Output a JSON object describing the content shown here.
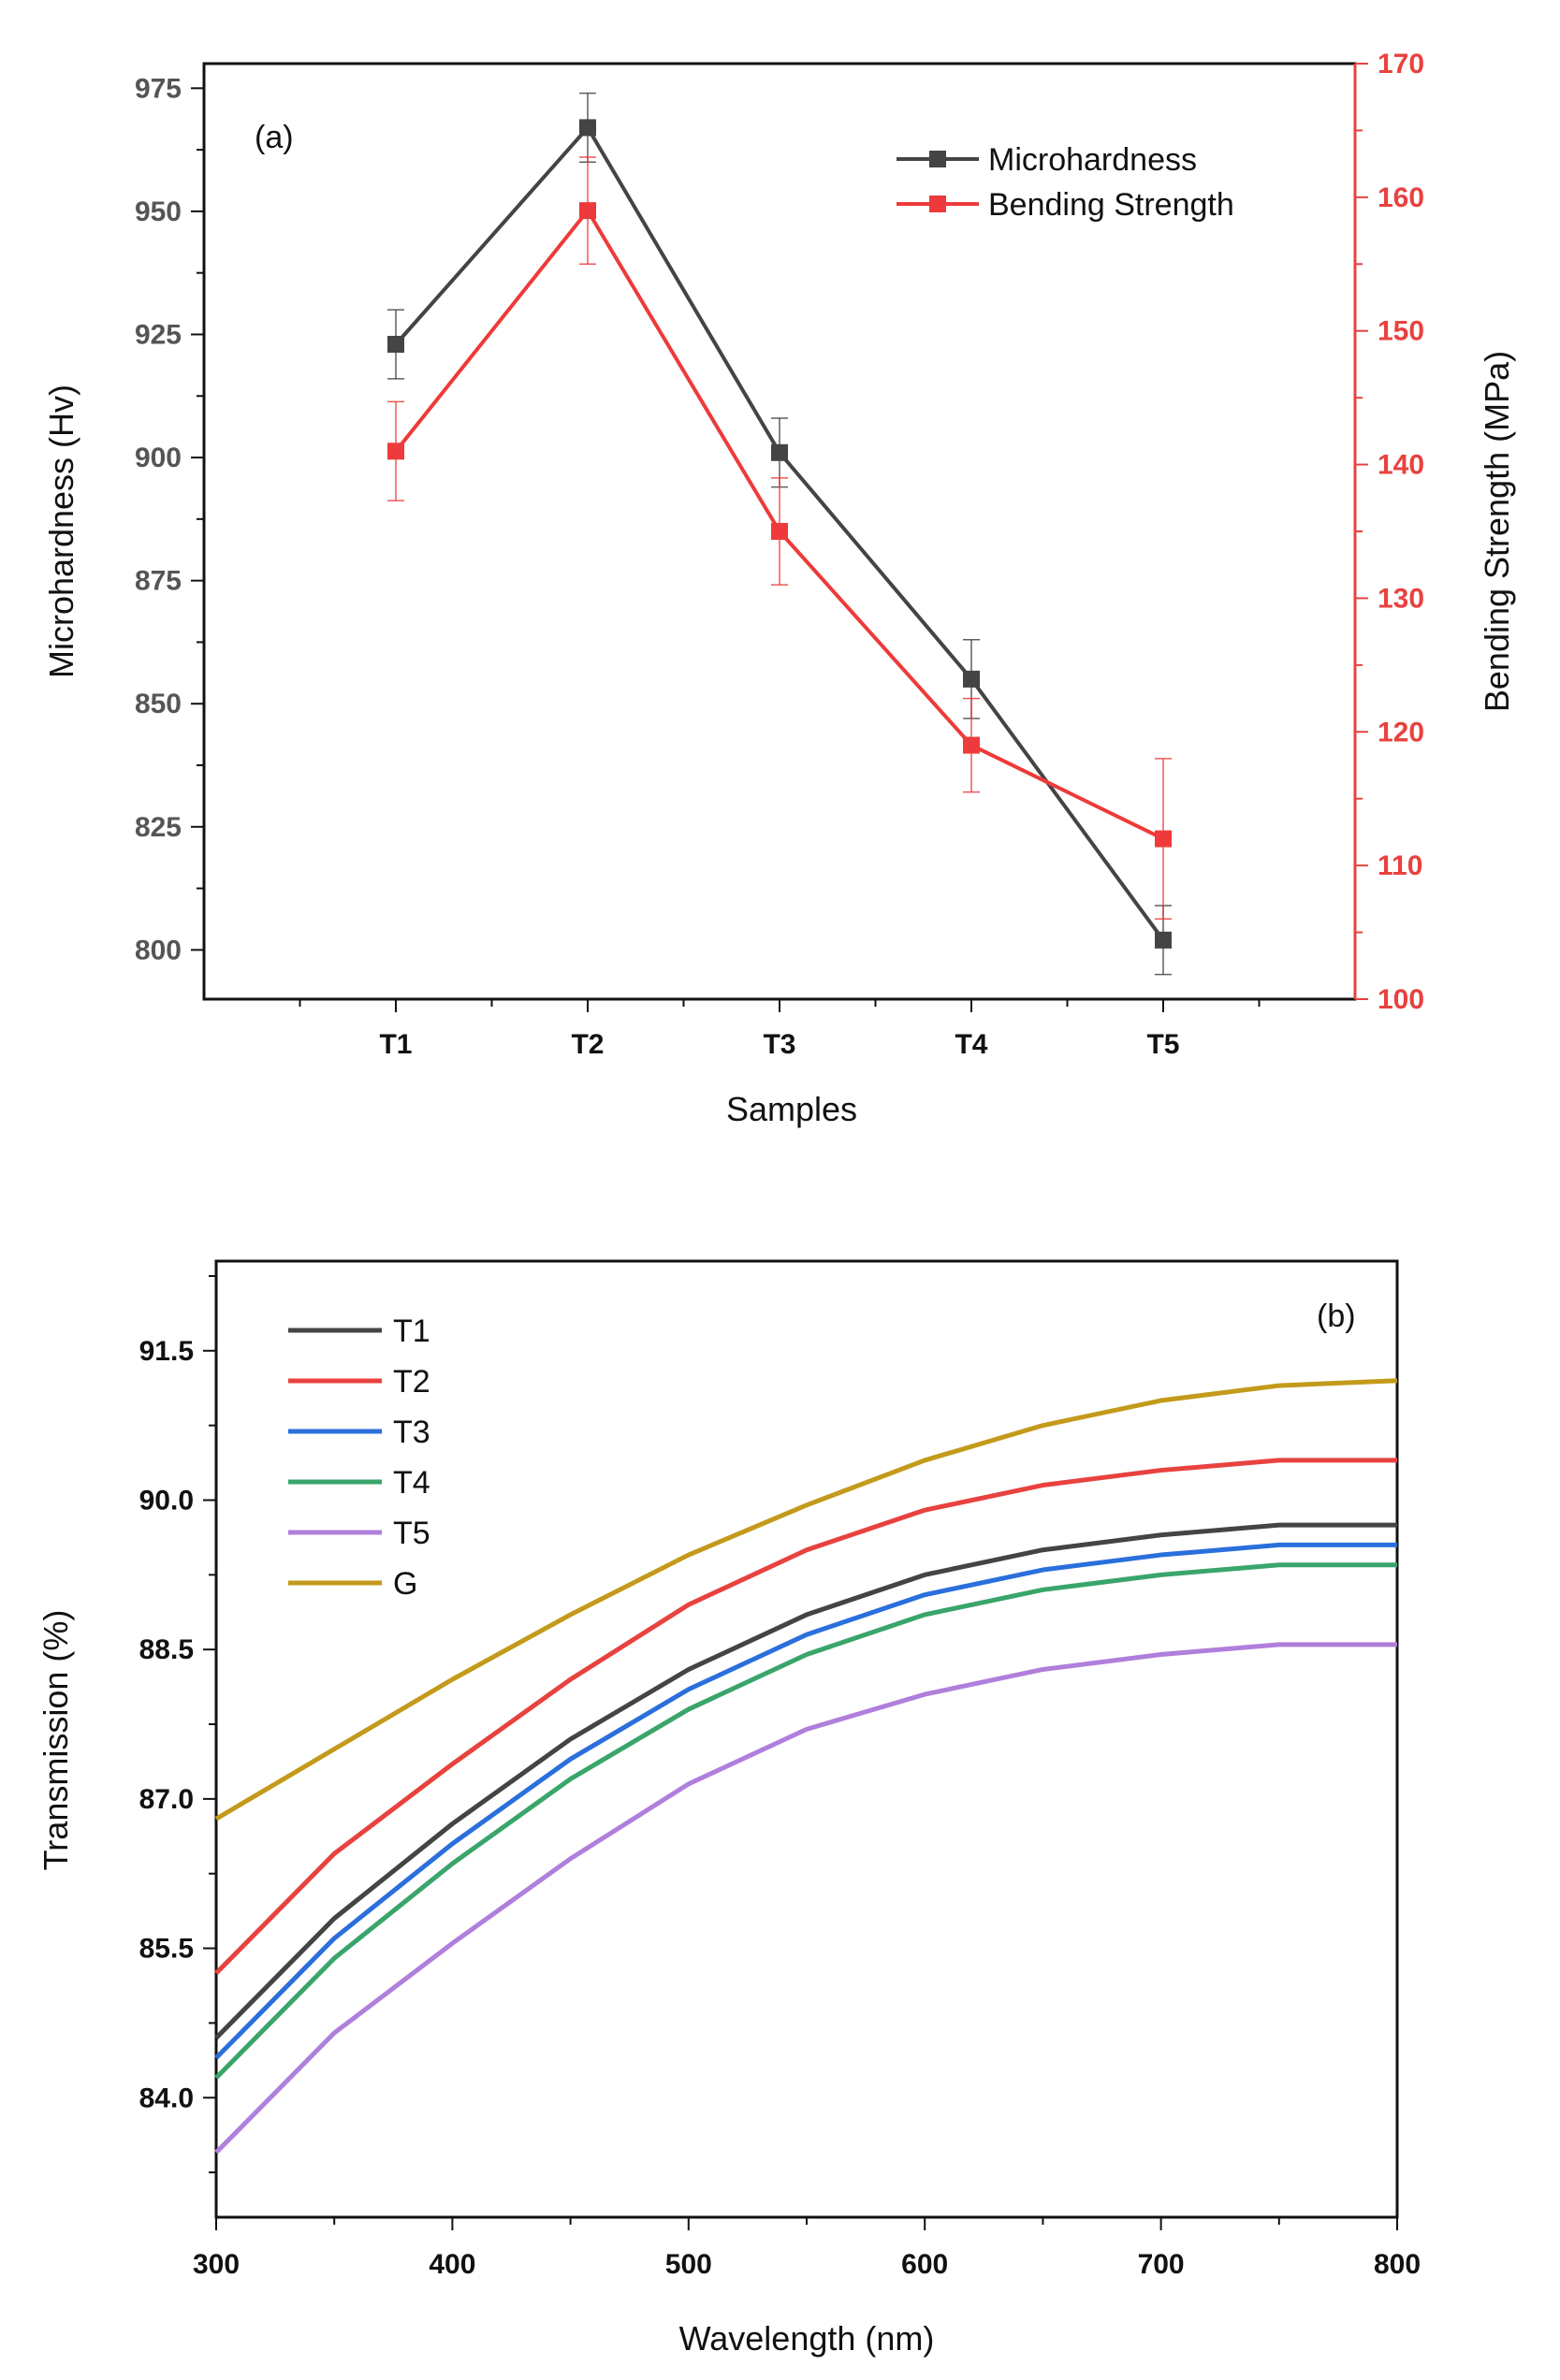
{
  "colors": {
    "axis": "#111111",
    "left_axis_text": "#555555",
    "right_axis": "#e8423f",
    "microhardness": "#444444",
    "bending": "#ee3a3a",
    "T1": "#444444",
    "T2": "#e8423f",
    "T3": "#2a6fdc",
    "T4": "#3aa56a",
    "T5": "#b07fdc",
    "G": "#c39a1a"
  },
  "chart_data": [
    {
      "type": "line",
      "panel_label": "(a)",
      "xlabel": "Samples",
      "ylabel": "Microhardness (Hv)",
      "y2label": "Bending Strength (MPa)",
      "categories": [
        "T1",
        "T2",
        "T3",
        "T4",
        "T5"
      ],
      "ylim": [
        790,
        980
      ],
      "y2lim": [
        100,
        170
      ],
      "yticks": [
        800,
        825,
        850,
        875,
        900,
        925,
        950,
        975
      ],
      "y2ticks": [
        100,
        110,
        120,
        130,
        140,
        150,
        160,
        170
      ],
      "legend_position": "top-right",
      "series": [
        {
          "name": "Microhardness",
          "axis": "left",
          "values": [
            923,
            967,
            901,
            855,
            802
          ],
          "errors": [
            7,
            7,
            7,
            8,
            7
          ]
        },
        {
          "name": "Bending Strength",
          "axis": "right",
          "values": [
            141,
            159,
            135,
            119,
            112
          ],
          "errors": [
            3.7,
            4,
            4,
            3.5,
            6
          ]
        }
      ]
    },
    {
      "type": "line",
      "panel_label": "(b)",
      "xlabel": "Wavelength (nm)",
      "ylabel": "Transmission (%)",
      "x": [
        300,
        350,
        400,
        450,
        500,
        550,
        600,
        650,
        700,
        750,
        800
      ],
      "xlim": [
        300,
        800
      ],
      "xticks": [
        300,
        400,
        500,
        600,
        700,
        800
      ],
      "ylim": [
        82.8,
        92.4
      ],
      "yticks": [
        "84.0",
        "85.5",
        "87.0",
        "88.5",
        "90.0",
        "91.5"
      ],
      "legend_position": "top-left",
      "series": [
        {
          "name": "T1",
          "values": [
            84.6,
            85.8,
            86.75,
            87.6,
            88.3,
            88.85,
            89.25,
            89.5,
            89.65,
            89.75,
            89.75
          ]
        },
        {
          "name": "T2",
          "values": [
            85.25,
            86.45,
            87.35,
            88.2,
            88.95,
            89.5,
            89.9,
            90.15,
            90.3,
            90.4,
            90.4
          ]
        },
        {
          "name": "T3",
          "values": [
            84.4,
            85.6,
            86.55,
            87.4,
            88.1,
            88.65,
            89.05,
            89.3,
            89.45,
            89.55,
            89.55
          ]
        },
        {
          "name": "T4",
          "values": [
            84.2,
            85.4,
            86.35,
            87.2,
            87.9,
            88.45,
            88.85,
            89.1,
            89.25,
            89.35,
            89.35
          ]
        },
        {
          "name": "T5",
          "values": [
            83.45,
            84.65,
            85.55,
            86.4,
            87.15,
            87.7,
            88.05,
            88.3,
            88.45,
            88.55,
            88.55
          ]
        },
        {
          "name": "G",
          "values": [
            86.8,
            87.5,
            88.2,
            88.85,
            89.45,
            89.95,
            90.4,
            90.75,
            91.0,
            91.15,
            91.2
          ]
        }
      ]
    }
  ]
}
